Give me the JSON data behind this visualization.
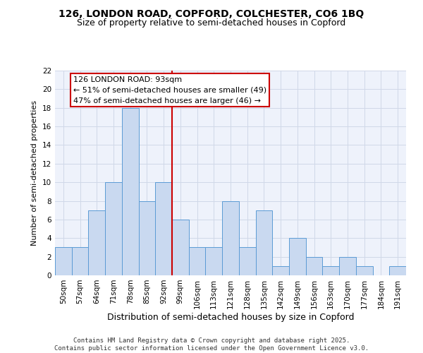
{
  "title": "126, LONDON ROAD, COPFORD, COLCHESTER, CO6 1BQ",
  "subtitle": "Size of property relative to semi-detached houses in Copford",
  "xlabel": "Distribution of semi-detached houses by size in Copford",
  "ylabel": "Number of semi-detached properties",
  "categories": [
    "50sqm",
    "57sqm",
    "64sqm",
    "71sqm",
    "78sqm",
    "85sqm",
    "92sqm",
    "99sqm",
    "106sqm",
    "113sqm",
    "121sqm",
    "128sqm",
    "135sqm",
    "142sqm",
    "149sqm",
    "156sqm",
    "163sqm",
    "170sqm",
    "177sqm",
    "184sqm",
    "191sqm"
  ],
  "values": [
    3,
    3,
    7,
    10,
    18,
    8,
    10,
    6,
    3,
    3,
    8,
    3,
    7,
    1,
    4,
    2,
    1,
    2,
    1,
    0,
    1
  ],
  "bar_color": "#c9d9f0",
  "bar_edge_color": "#5b9bd5",
  "vline_index": 6.5,
  "highlight_label": "126 LONDON ROAD: 93sqm",
  "highlight_smaller": "← 51% of semi-detached houses are smaller (49)",
  "highlight_larger": "47% of semi-detached houses are larger (46) →",
  "annotation_box_color": "#ffffff",
  "annotation_box_edge": "#cc0000",
  "vline_color": "#cc0000",
  "grid_color": "#d0d8e8",
  "background_color": "#eef2fb",
  "ylim": [
    0,
    22
  ],
  "yticks": [
    0,
    2,
    4,
    6,
    8,
    10,
    12,
    14,
    16,
    18,
    20,
    22
  ],
  "footnote": "Contains HM Land Registry data © Crown copyright and database right 2025.\nContains public sector information licensed under the Open Government Licence v3.0.",
  "title_fontsize": 10,
  "subtitle_fontsize": 9,
  "xlabel_fontsize": 9,
  "ylabel_fontsize": 8,
  "tick_fontsize": 7.5,
  "annot_fontsize": 8,
  "footnote_fontsize": 6.5
}
